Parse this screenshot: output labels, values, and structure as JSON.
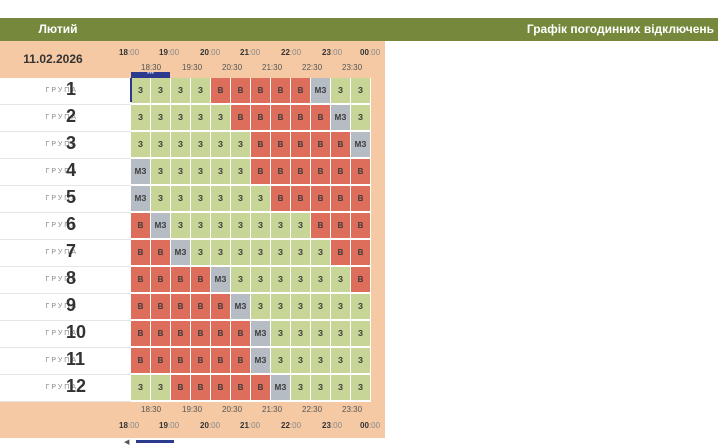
{
  "header": {
    "month": "Лютий",
    "title": "Графік погодинних відключень",
    "date": "11.02.2026"
  },
  "timeline": {
    "hours": [
      {
        "h": "18",
        "m": ":00"
      },
      {
        "h": "19",
        "m": ":00"
      },
      {
        "h": "20",
        "m": ":00"
      },
      {
        "h": "21",
        "m": ":00"
      },
      {
        "h": "22",
        "m": ":00"
      },
      {
        "h": "23",
        "m": ":00"
      },
      {
        "h": "00",
        "m": ":00"
      }
    ],
    "halves": [
      "18:30",
      "19:30",
      "20:30",
      "21:30",
      "22:30",
      "23:30"
    ],
    "now_marker": "***"
  },
  "group_label": "ГРУПА",
  "groups": [
    {
      "num": "1",
      "slots": [
        "З",
        "З",
        "З",
        "З",
        "В",
        "В",
        "В",
        "В",
        "В",
        "МЗ",
        "З",
        "З"
      ]
    },
    {
      "num": "2",
      "slots": [
        "З",
        "З",
        "З",
        "З",
        "З",
        "В",
        "В",
        "В",
        "В",
        "В",
        "МЗ",
        "З"
      ]
    },
    {
      "num": "3",
      "slots": [
        "З",
        "З",
        "З",
        "З",
        "З",
        "З",
        "В",
        "В",
        "В",
        "В",
        "В",
        "МЗ"
      ]
    },
    {
      "num": "4",
      "slots": [
        "МЗ",
        "З",
        "З",
        "З",
        "З",
        "З",
        "В",
        "В",
        "В",
        "В",
        "В",
        "В"
      ]
    },
    {
      "num": "5",
      "slots": [
        "МЗ",
        "З",
        "З",
        "З",
        "З",
        "З",
        "З",
        "В",
        "В",
        "В",
        "В",
        "В"
      ]
    },
    {
      "num": "6",
      "slots": [
        "В",
        "МЗ",
        "З",
        "З",
        "З",
        "З",
        "З",
        "З",
        "З",
        "В",
        "В",
        "В"
      ]
    },
    {
      "num": "7",
      "slots": [
        "В",
        "В",
        "МЗ",
        "З",
        "З",
        "З",
        "З",
        "З",
        "З",
        "З",
        "В",
        "В"
      ]
    },
    {
      "num": "8",
      "slots": [
        "В",
        "В",
        "В",
        "В",
        "МЗ",
        "З",
        "З",
        "З",
        "З",
        "З",
        "З",
        "В"
      ]
    },
    {
      "num": "9",
      "slots": [
        "В",
        "В",
        "В",
        "В",
        "В",
        "МЗ",
        "З",
        "З",
        "З",
        "З",
        "З",
        "З"
      ]
    },
    {
      "num": "10",
      "slots": [
        "В",
        "В",
        "В",
        "В",
        "В",
        "В",
        "МЗ",
        "З",
        "З",
        "З",
        "З",
        "З"
      ]
    },
    {
      "num": "11",
      "slots": [
        "В",
        "В",
        "В",
        "В",
        "В",
        "В",
        "МЗ",
        "З",
        "З",
        "З",
        "З",
        "З"
      ]
    },
    {
      "num": "12",
      "slots": [
        "З",
        "З",
        "В",
        "В",
        "В",
        "В",
        "В",
        "МЗ",
        "З",
        "З",
        "З",
        "З"
      ]
    }
  ],
  "colors": {
    "header_bg": "#76883c",
    "peach": "#f4c9a4",
    "power_on": "#c7d596",
    "power_off": "#dd6e5c",
    "maybe": "#b5bcc3",
    "accent": "#2b3a8c"
  }
}
